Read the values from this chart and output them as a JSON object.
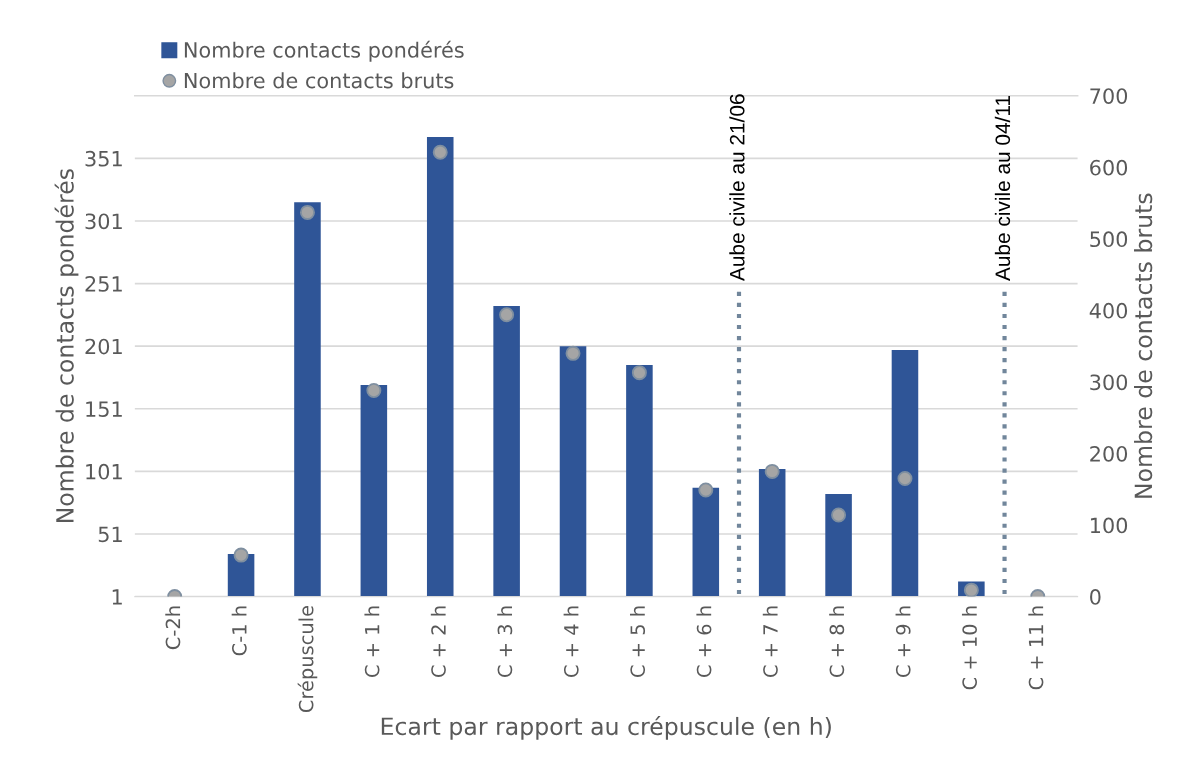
{
  "chart_data": {
    "type": "bar",
    "xlabel": "Ecart par rapport au crépuscule (en h)",
    "ylabel": "Nombre de contacts pondérés",
    "y2label": "Nombre de contacts bruts",
    "categories": [
      "C-2h",
      "C-1 h",
      "Crépuscule",
      "C + 1 h",
      "C + 2 h",
      "C + 3 h",
      "C + 4 h",
      "C + 5 h",
      "C + 6 h",
      "C + 7 h",
      "C + 8 h",
      "C + 9 h",
      "C + 10 h",
      "C + 11 h"
    ],
    "series": [
      {
        "name": "Nombre contacts pondérés",
        "color": "#2f5597",
        "values": [
          1,
          35,
          316,
          170,
          368,
          233,
          201,
          186,
          88,
          103,
          83,
          198,
          13,
          1
        ]
      },
      {
        "name": "Nombre de contacts bruts",
        "type": "scatter",
        "axis": "y2",
        "color": "#a5a5a5",
        "values": [
          0,
          58,
          537,
          288,
          621,
          394,
          340,
          313,
          149,
          175,
          114,
          165,
          9,
          0
        ]
      }
    ],
    "ylim": [
      1,
      401
    ],
    "yticks": [
      1,
      51,
      101,
      151,
      201,
      251,
      301,
      351
    ],
    "y2lim": [
      0,
      700
    ],
    "y2ticks": [
      0,
      100,
      200,
      300,
      400,
      500,
      600,
      700
    ],
    "annotations": [
      "Aube civile au 21/06",
      "Aube civile au 04/11"
    ],
    "grid": "y",
    "legend": "top left",
    "marker": "circle"
  }
}
